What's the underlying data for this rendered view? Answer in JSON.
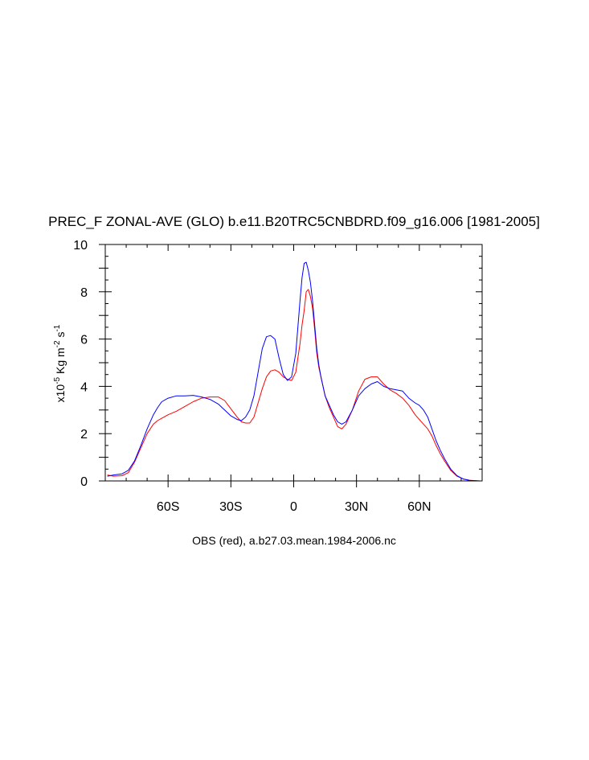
{
  "chart_data": {
    "type": "line",
    "title": "PREC_F ZONAL-AVE (GLO) b.e11.B20TRC5CNBDRD.f09_g16.006 [1981-2005]",
    "xlabel": "OBS (red), a.b27.03.mean.1984-2006.nc",
    "ylabel": {
      "base": "x10",
      "exp1": "-5",
      "mid1": " Kg m",
      "exp2": "-2",
      "mid2": " s",
      "exp3": "-1"
    },
    "xlim": [
      -90,
      90
    ],
    "ylim": [
      0,
      10
    ],
    "x_ticks": [
      {
        "value": -60,
        "label": "60S"
      },
      {
        "value": -30,
        "label": "30S"
      },
      {
        "value": 0,
        "label": "0"
      },
      {
        "value": 30,
        "label": "30N"
      },
      {
        "value": 60,
        "label": "60N"
      }
    ],
    "y_ticks": [
      {
        "value": 0,
        "label": "0"
      },
      {
        "value": 2,
        "label": "2"
      },
      {
        "value": 4,
        "label": "4"
      },
      {
        "value": 6,
        "label": "6"
      },
      {
        "value": 8,
        "label": "8"
      },
      {
        "value": 10,
        "label": "10"
      }
    ],
    "grid": false,
    "series": [
      {
        "color": "#ff0000",
        "x": [
          -89,
          -86,
          -82,
          -79,
          -76,
          -73,
          -70,
          -67,
          -65,
          -63,
          -60,
          -56,
          -52,
          -48,
          -44,
          -40,
          -36,
          -33,
          -30,
          -27,
          -25,
          -23,
          -21,
          -19,
          -17,
          -15,
          -13,
          -11,
          -9,
          -7,
          -5,
          -3,
          -1,
          1,
          3,
          4,
          5,
          6,
          7,
          8,
          9,
          10,
          11,
          12,
          13,
          15,
          17,
          19,
          21,
          23,
          25,
          28,
          31,
          34,
          37,
          40,
          43,
          46,
          49,
          52,
          55,
          58,
          60,
          62,
          64,
          66,
          68,
          70,
          72,
          75,
          78,
          81,
          84,
          87,
          89
        ],
        "y": [
          0.25,
          0.2,
          0.22,
          0.35,
          0.8,
          1.4,
          2.0,
          2.4,
          2.55,
          2.65,
          2.8,
          2.95,
          3.15,
          3.35,
          3.5,
          3.55,
          3.55,
          3.4,
          3.05,
          2.7,
          2.5,
          2.45,
          2.45,
          2.7,
          3.3,
          3.9,
          4.4,
          4.65,
          4.7,
          4.6,
          4.4,
          4.3,
          4.25,
          4.6,
          5.8,
          6.6,
          7.2,
          8.0,
          8.1,
          7.8,
          7.3,
          6.4,
          5.4,
          4.8,
          4.4,
          3.6,
          3.1,
          2.7,
          2.3,
          2.2,
          2.4,
          3.0,
          3.8,
          4.3,
          4.4,
          4.4,
          4.1,
          3.85,
          3.7,
          3.5,
          3.2,
          2.8,
          2.6,
          2.4,
          2.2,
          1.9,
          1.5,
          1.15,
          0.85,
          0.45,
          0.2,
          0.08,
          0.03,
          0.01,
          0.0
        ]
      },
      {
        "color": "#0000ff",
        "x": [
          -89,
          -86,
          -82,
          -79,
          -76,
          -73,
          -70,
          -67,
          -65,
          -63,
          -60,
          -56,
          -52,
          -48,
          -44,
          -40,
          -36,
          -33,
          -30,
          -27,
          -25,
          -23,
          -21,
          -19,
          -17,
          -15,
          -13,
          -11,
          -9,
          -7,
          -5,
          -3,
          -1,
          1,
          3,
          4,
          5,
          6,
          7,
          8,
          9,
          10,
          11,
          12,
          13,
          15,
          17,
          19,
          21,
          23,
          25,
          28,
          31,
          34,
          37,
          40,
          43,
          46,
          49,
          52,
          55,
          58,
          60,
          62,
          64,
          66,
          68,
          70,
          72,
          75,
          78,
          81,
          84,
          87,
          89
        ],
        "y": [
          0.2,
          0.25,
          0.3,
          0.45,
          0.85,
          1.5,
          2.2,
          2.8,
          3.1,
          3.35,
          3.5,
          3.6,
          3.6,
          3.62,
          3.55,
          3.45,
          3.25,
          3.0,
          2.75,
          2.6,
          2.55,
          2.7,
          3.0,
          3.6,
          4.6,
          5.6,
          6.1,
          6.15,
          6.0,
          5.2,
          4.5,
          4.25,
          4.4,
          5.4,
          7.6,
          8.6,
          9.2,
          9.25,
          8.9,
          8.4,
          7.6,
          6.6,
          5.6,
          4.9,
          4.4,
          3.6,
          3.2,
          2.8,
          2.5,
          2.4,
          2.5,
          3.0,
          3.6,
          3.9,
          4.1,
          4.2,
          4.0,
          3.9,
          3.85,
          3.8,
          3.5,
          3.3,
          3.2,
          3.0,
          2.7,
          2.2,
          1.7,
          1.3,
          0.95,
          0.5,
          0.22,
          0.08,
          0.02,
          0.01,
          0.0
        ]
      }
    ]
  }
}
